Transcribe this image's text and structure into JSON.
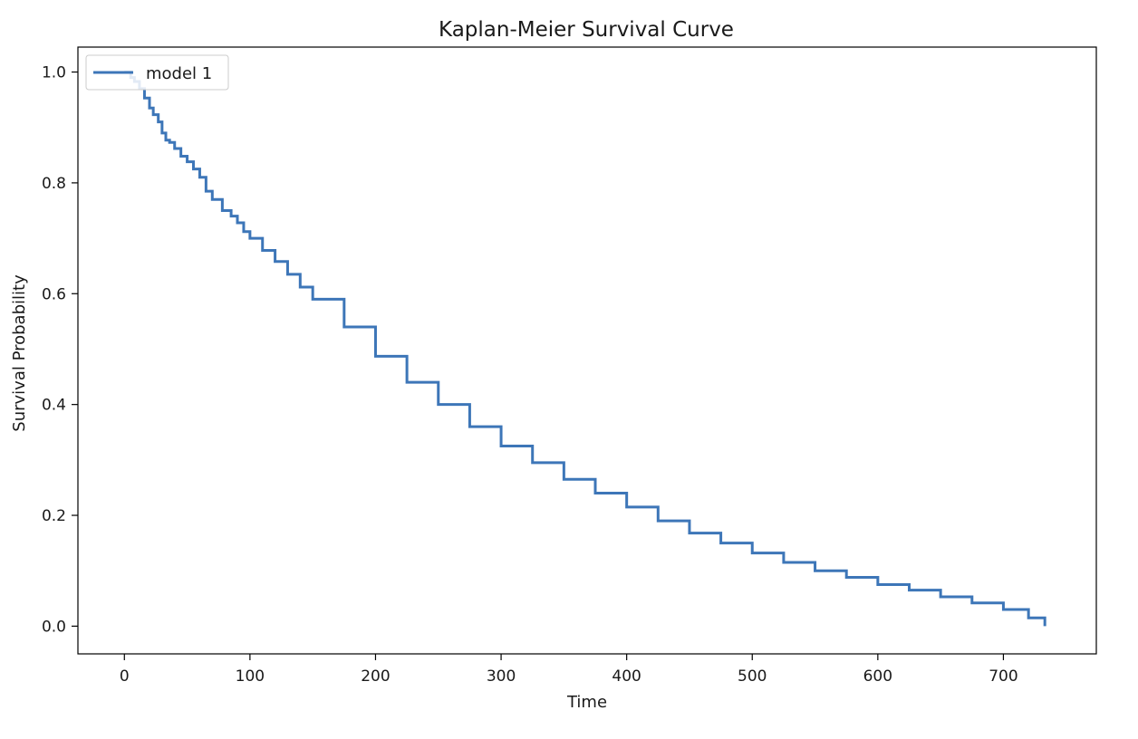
{
  "chart_data": {
    "type": "line",
    "title": "Kaplan-Meier Survival Curve",
    "xlabel": "Time",
    "ylabel": "Survival Probability",
    "xlim": [
      -37,
      774
    ],
    "ylim": [
      -0.05,
      1.045
    ],
    "xticks": [
      0,
      100,
      200,
      300,
      400,
      500,
      600,
      700
    ],
    "yticks": [
      0.0,
      0.2,
      0.4,
      0.6,
      0.8,
      1.0
    ],
    "xtick_labels": [
      "0",
      "100",
      "200",
      "300",
      "400",
      "500",
      "600",
      "700"
    ],
    "ytick_labels": [
      "0.0",
      "0.2",
      "0.4",
      "0.6",
      "0.8",
      "1.0"
    ],
    "grid": false,
    "legend_position": "upper left",
    "series": [
      {
        "name": "model 1",
        "color": "#3d76b8",
        "step": true,
        "x": [
          0,
          5,
          8,
          12,
          16,
          20,
          23,
          27,
          30,
          33,
          36,
          40,
          45,
          50,
          55,
          60,
          65,
          70,
          78,
          85,
          90,
          95,
          100,
          110,
          120,
          130,
          140,
          150,
          175,
          200,
          225,
          250,
          275,
          300,
          325,
          350,
          375,
          400,
          425,
          450,
          475,
          500,
          525,
          550,
          575,
          600,
          625,
          650,
          675,
          700,
          720,
          733
        ],
        "y": [
          1.0,
          0.99,
          0.983,
          0.97,
          0.953,
          0.935,
          0.923,
          0.91,
          0.89,
          0.877,
          0.873,
          0.862,
          0.848,
          0.838,
          0.825,
          0.81,
          0.785,
          0.77,
          0.75,
          0.74,
          0.728,
          0.712,
          0.7,
          0.678,
          0.658,
          0.635,
          0.612,
          0.59,
          0.54,
          0.487,
          0.44,
          0.4,
          0.36,
          0.325,
          0.295,
          0.265,
          0.24,
          0.215,
          0.19,
          0.168,
          0.15,
          0.132,
          0.115,
          0.1,
          0.088,
          0.075,
          0.065,
          0.053,
          0.042,
          0.03,
          0.015,
          0.0
        ]
      }
    ]
  }
}
